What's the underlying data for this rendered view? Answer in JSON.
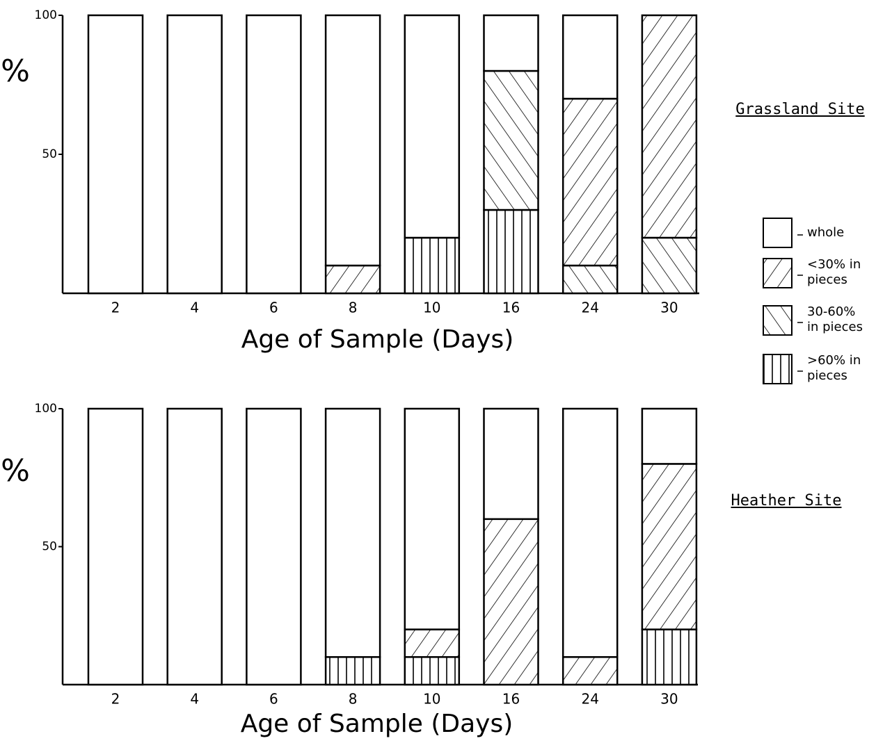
{
  "chart_data": [
    {
      "type": "bar",
      "stacked": true,
      "title": "Grassland Site",
      "ylabel": "%",
      "xlabel": "Age of Sample (Days)",
      "categories": [
        "2",
        "4",
        "6",
        "8",
        "10",
        "16",
        "24",
        "30"
      ],
      "ylim": [
        0,
        100
      ],
      "yticks": [
        50,
        100
      ],
      "series": [
        {
          "name": "whole",
          "color": "#ffffff",
          "pattern": "none",
          "values": [
            100,
            100,
            100,
            90,
            80,
            20,
            30,
            0
          ]
        },
        {
          "name": "<30% in pieces",
          "color": "#ffffff",
          "pattern": "diagonal-up",
          "values": [
            0,
            0,
            0,
            10,
            0,
            0,
            60,
            80
          ]
        },
        {
          "name": "30-60% in pieces",
          "color": "#ffffff",
          "pattern": "diagonal-down",
          "values": [
            0,
            0,
            0,
            0,
            0,
            50,
            10,
            20
          ]
        },
        {
          "name": ">60% in pieces",
          "color": "#ffffff",
          "pattern": "vertical",
          "values": [
            0,
            0,
            0,
            0,
            20,
            30,
            0,
            0
          ]
        }
      ]
    },
    {
      "type": "bar",
      "stacked": true,
      "title": "Heather Site",
      "ylabel": "%",
      "xlabel": "Age of Sample (Days)",
      "categories": [
        "2",
        "4",
        "6",
        "8",
        "10",
        "16",
        "24",
        "30"
      ],
      "ylim": [
        0,
        100
      ],
      "yticks": [
        50,
        100
      ],
      "series": [
        {
          "color": "#ffffff",
          "pattern": "none",
          "values": [
            100,
            100,
            100,
            90,
            80,
            40,
            90,
            20
          ]
        },
        {
          "color": "#ffffff",
          "pattern": "diagonal-up",
          "values": [
            0,
            0,
            0,
            0,
            10,
            60,
            10,
            60
          ]
        },
        {
          "color": "#ffffff",
          "pattern": "diagonal-down",
          "values": [
            0,
            0,
            0,
            0,
            0,
            0,
            0,
            0
          ]
        },
        {
          "color": "#ffffff",
          "pattern": "vertical",
          "values": [
            0,
            0,
            0,
            10,
            10,
            0,
            0,
            20
          ]
        }
      ]
    }
  ]
}
